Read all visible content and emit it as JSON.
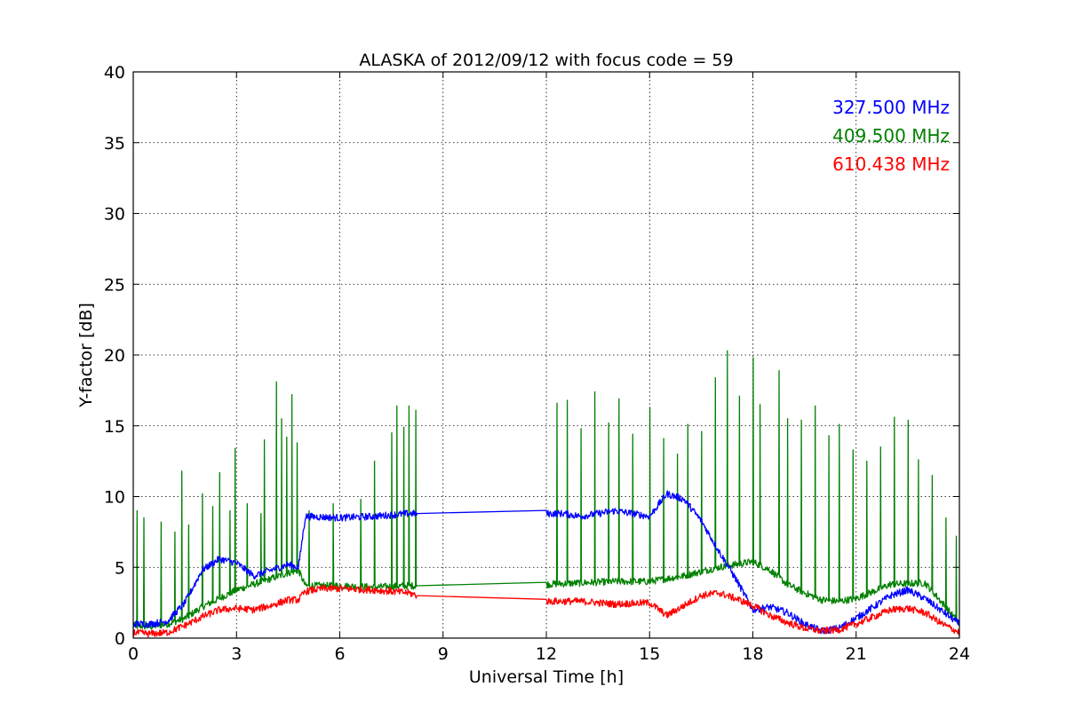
{
  "chart_data": {
    "type": "line",
    "title": "ALASKA of 2012/09/12 with focus code = 59",
    "xlabel": "Universal Time [h]",
    "ylabel": "Y-factor [dB]",
    "xlim": [
      0,
      24
    ],
    "ylim": [
      0,
      40
    ],
    "xticks": [
      0,
      3,
      6,
      9,
      12,
      15,
      18,
      21,
      24
    ],
    "yticks": [
      0,
      5,
      10,
      15,
      20,
      25,
      30,
      35,
      40
    ],
    "grid": true,
    "legend_position": "top-right",
    "series": [
      {
        "name": "327.500 MHz",
        "color": "#0000ff",
        "x": [
          0,
          0.5,
          1,
          1.5,
          2,
          2.5,
          3,
          3.5,
          4,
          4.5,
          4.8,
          5,
          6,
          7,
          8,
          8.25,
          12,
          12.5,
          13,
          14,
          15,
          15.5,
          16,
          16.5,
          17,
          17.5,
          18,
          18.5,
          19,
          19.5,
          20,
          20.5,
          21,
          21.5,
          22,
          22.5,
          23,
          23.5,
          24
        ],
        "values": [
          1.0,
          1.0,
          1.2,
          2.5,
          4.8,
          5.6,
          5.3,
          4.4,
          4.8,
          5.2,
          5.0,
          8.6,
          8.5,
          8.6,
          8.8,
          8.8,
          8.8,
          8.8,
          8.6,
          9.0,
          8.6,
          10.2,
          9.8,
          8.3,
          6.2,
          4.2,
          2.0,
          2.2,
          1.8,
          1.0,
          0.5,
          0.7,
          1.4,
          2.2,
          3.0,
          3.4,
          2.8,
          1.9,
          1.0
        ]
      },
      {
        "name": "409.500 MHz",
        "color": "#008000",
        "x": [
          0,
          0.5,
          1,
          1.5,
          2,
          2.5,
          3,
          3.5,
          4,
          4.5,
          4.8,
          5,
          6,
          7,
          8,
          8.25,
          12,
          13,
          14,
          15,
          16,
          17,
          18,
          18.5,
          19,
          19.5,
          20,
          20.5,
          21,
          22,
          23,
          23.5,
          24
        ],
        "values": [
          0.9,
          0.8,
          1.0,
          1.4,
          2.2,
          2.8,
          3.4,
          3.8,
          4.2,
          4.6,
          4.8,
          3.7,
          3.7,
          3.6,
          3.7,
          3.7,
          3.8,
          3.9,
          4.0,
          4.0,
          4.4,
          5.0,
          5.4,
          4.8,
          3.8,
          3.2,
          2.7,
          2.6,
          2.8,
          3.8,
          3.9,
          2.5,
          1.0
        ],
        "spikes": [
          {
            "x": 0.1,
            "y": 9.0
          },
          {
            "x": 0.3,
            "y": 8.5
          },
          {
            "x": 0.8,
            "y": 8.2
          },
          {
            "x": 1.2,
            "y": 7.5
          },
          {
            "x": 1.4,
            "y": 11.8
          },
          {
            "x": 1.6,
            "y": 8.0
          },
          {
            "x": 2.0,
            "y": 10.2
          },
          {
            "x": 2.3,
            "y": 9.3
          },
          {
            "x": 2.5,
            "y": 11.7
          },
          {
            "x": 2.8,
            "y": 9.0
          },
          {
            "x": 2.95,
            "y": 13.4
          },
          {
            "x": 3.3,
            "y": 9.5
          },
          {
            "x": 3.7,
            "y": 8.8
          },
          {
            "x": 3.8,
            "y": 14.0
          },
          {
            "x": 4.15,
            "y": 18.1
          },
          {
            "x": 4.3,
            "y": 15.5
          },
          {
            "x": 4.45,
            "y": 14.2
          },
          {
            "x": 4.6,
            "y": 17.2
          },
          {
            "x": 4.75,
            "y": 13.8
          },
          {
            "x": 5.1,
            "y": 9.0
          },
          {
            "x": 5.8,
            "y": 9.5
          },
          {
            "x": 6.6,
            "y": 9.8
          },
          {
            "x": 7.0,
            "y": 12.5
          },
          {
            "x": 7.5,
            "y": 14.5
          },
          {
            "x": 7.65,
            "y": 16.4
          },
          {
            "x": 7.85,
            "y": 14.9
          },
          {
            "x": 8.0,
            "y": 16.4
          },
          {
            "x": 8.2,
            "y": 16.1
          },
          {
            "x": 12.3,
            "y": 16.6
          },
          {
            "x": 12.6,
            "y": 16.8
          },
          {
            "x": 13.0,
            "y": 14.8
          },
          {
            "x": 13.4,
            "y": 17.4
          },
          {
            "x": 13.8,
            "y": 15.2
          },
          {
            "x": 14.1,
            "y": 16.9
          },
          {
            "x": 14.5,
            "y": 14.4
          },
          {
            "x": 15.0,
            "y": 16.3
          },
          {
            "x": 15.4,
            "y": 14.1
          },
          {
            "x": 15.8,
            "y": 13.0
          },
          {
            "x": 16.1,
            "y": 15.1
          },
          {
            "x": 16.5,
            "y": 14.6
          },
          {
            "x": 16.9,
            "y": 18.4
          },
          {
            "x": 17.25,
            "y": 20.3
          },
          {
            "x": 17.6,
            "y": 17.1
          },
          {
            "x": 18.0,
            "y": 19.8
          },
          {
            "x": 18.2,
            "y": 16.5
          },
          {
            "x": 18.75,
            "y": 18.9
          },
          {
            "x": 19.0,
            "y": 15.5
          },
          {
            "x": 19.4,
            "y": 15.4
          },
          {
            "x": 19.8,
            "y": 16.4
          },
          {
            "x": 20.2,
            "y": 14.3
          },
          {
            "x": 20.5,
            "y": 15.1
          },
          {
            "x": 20.9,
            "y": 13.3
          },
          {
            "x": 21.3,
            "y": 12.5
          },
          {
            "x": 21.7,
            "y": 13.5
          },
          {
            "x": 22.1,
            "y": 15.6
          },
          {
            "x": 22.5,
            "y": 15.4
          },
          {
            "x": 22.8,
            "y": 12.6
          },
          {
            "x": 23.2,
            "y": 11.5
          },
          {
            "x": 23.6,
            "y": 8.5
          },
          {
            "x": 23.9,
            "y": 7.2
          }
        ]
      },
      {
        "name": "610.438 MHz",
        "color": "#ff0000",
        "x": [
          0,
          0.5,
          1,
          1.5,
          2,
          2.5,
          3,
          3.5,
          4,
          4.5,
          4.8,
          5,
          5.5,
          6,
          7,
          8,
          8.25,
          12,
          13,
          14,
          15,
          15.5,
          16,
          16.5,
          17,
          17.5,
          18,
          18.5,
          19,
          19.5,
          20,
          20.5,
          21,
          21.5,
          22,
          22.5,
          23,
          23.5,
          24
        ],
        "values": [
          0.4,
          0.3,
          0.4,
          0.9,
          1.5,
          2.0,
          2.1,
          2.0,
          2.3,
          2.7,
          2.7,
          3.3,
          3.5,
          3.5,
          3.4,
          3.2,
          3.0,
          2.6,
          2.6,
          2.4,
          2.5,
          1.6,
          2.3,
          3.0,
          3.2,
          2.8,
          2.3,
          1.6,
          1.1,
          0.7,
          0.5,
          0.6,
          1.0,
          1.5,
          2.0,
          2.1,
          1.8,
          1.0,
          0.4
        ]
      }
    ]
  }
}
